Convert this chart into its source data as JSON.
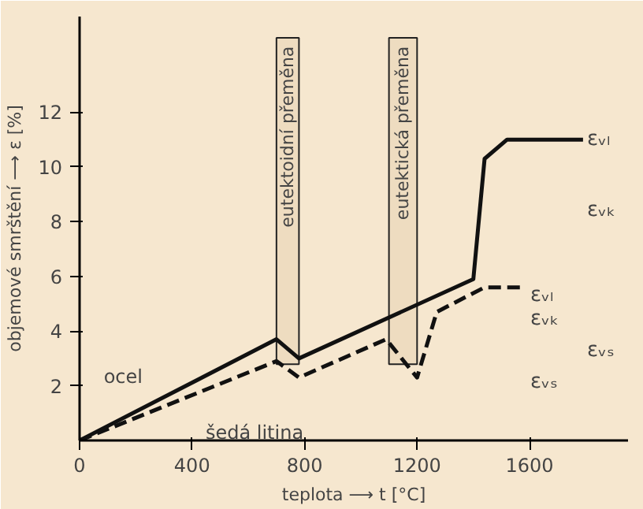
{
  "chart_data": {
    "type": "line",
    "xlabel": "teplota ⟶ t [°C]",
    "ylabel": "objemové smrštění ⟶ ε [%]",
    "xlim": [
      0,
      1950
    ],
    "ylim": [
      0,
      15.5
    ],
    "xticks": [
      0,
      400,
      800,
      1200,
      1600
    ],
    "yticks": [
      2,
      4,
      6,
      8,
      10,
      12
    ],
    "grid": false,
    "marker": "none",
    "series": [
      {
        "name": "ocel",
        "color": "#111111",
        "line_style": "solid",
        "x": [
          0,
          700,
          780,
          1400,
          1440,
          1520,
          1790
        ],
        "values": [
          0,
          3.7,
          3.0,
          5.9,
          10.3,
          11.0,
          11.0
        ]
      },
      {
        "name": "šedá litina",
        "color": "#111111",
        "line_style": "dashed",
        "x": [
          0,
          700,
          780,
          1090,
          1200,
          1270,
          1440,
          1570
        ],
        "values": [
          0,
          2.9,
          2.3,
          3.7,
          2.3,
          4.7,
          5.6,
          5.6
        ]
      }
    ],
    "bands": [
      {
        "axis": "x",
        "from": 700,
        "to": 780,
        "label": "eutektoidní přeměna"
      },
      {
        "axis": "x",
        "from": 1100,
        "to": 1200,
        "label": "eutektická přeměna"
      }
    ],
    "annotations": [
      "εᵥₗ",
      "εᵥₖ",
      "εᵥₛ",
      "εᵥₗ",
      "εᵥₖ",
      "εᵥₛ"
    ]
  }
}
